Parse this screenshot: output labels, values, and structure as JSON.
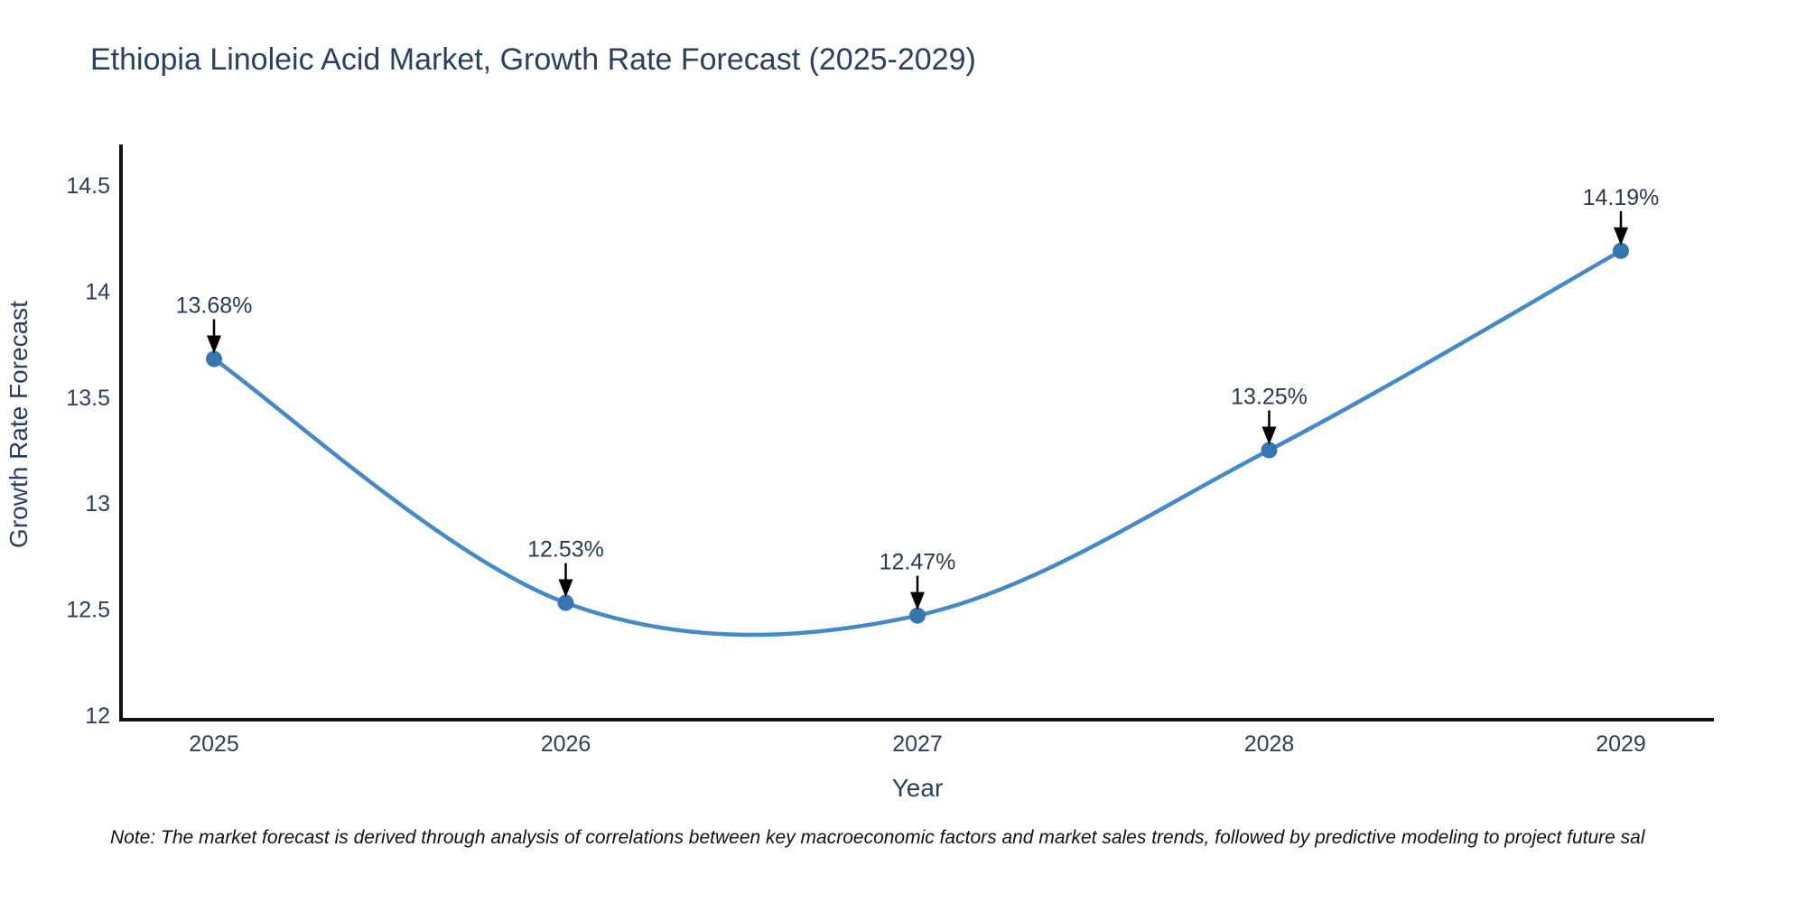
{
  "title": "Ethiopia Linoleic Acid Market, Growth Rate Forecast (2025-2029)",
  "note": "Note: The market forecast is derived through analysis of correlations between key macroeconomic factors and market sales trends, followed by predictive modeling to project future sal",
  "chart_data": {
    "type": "line",
    "title": "Ethiopia Linoleic Acid Market, Growth Rate Forecast (2025-2029)",
    "xlabel": "Year",
    "ylabel": "Growth Rate Forecast",
    "x": [
      2025,
      2026,
      2027,
      2028,
      2029
    ],
    "y": [
      13.68,
      12.53,
      12.47,
      13.25,
      14.19
    ],
    "point_labels": [
      "13.68%",
      "12.53%",
      "12.47%",
      "13.25%",
      "14.19%"
    ],
    "xticks": [
      2025,
      2026,
      2027,
      2028,
      2029
    ],
    "yticks": [
      12,
      12.5,
      13,
      13.5,
      14,
      14.5
    ],
    "ylim": [
      12,
      14.69
    ],
    "line_shape": "spline",
    "grid": false,
    "legend_position": "none",
    "annotation_style": "value-label-with-down-arrow",
    "colors": {
      "line": "#4489c8",
      "marker": "#3577b3",
      "axis": "#111111",
      "arrow": "#000000",
      "text": "#2b3f5e",
      "background": "#ffffff"
    }
  }
}
